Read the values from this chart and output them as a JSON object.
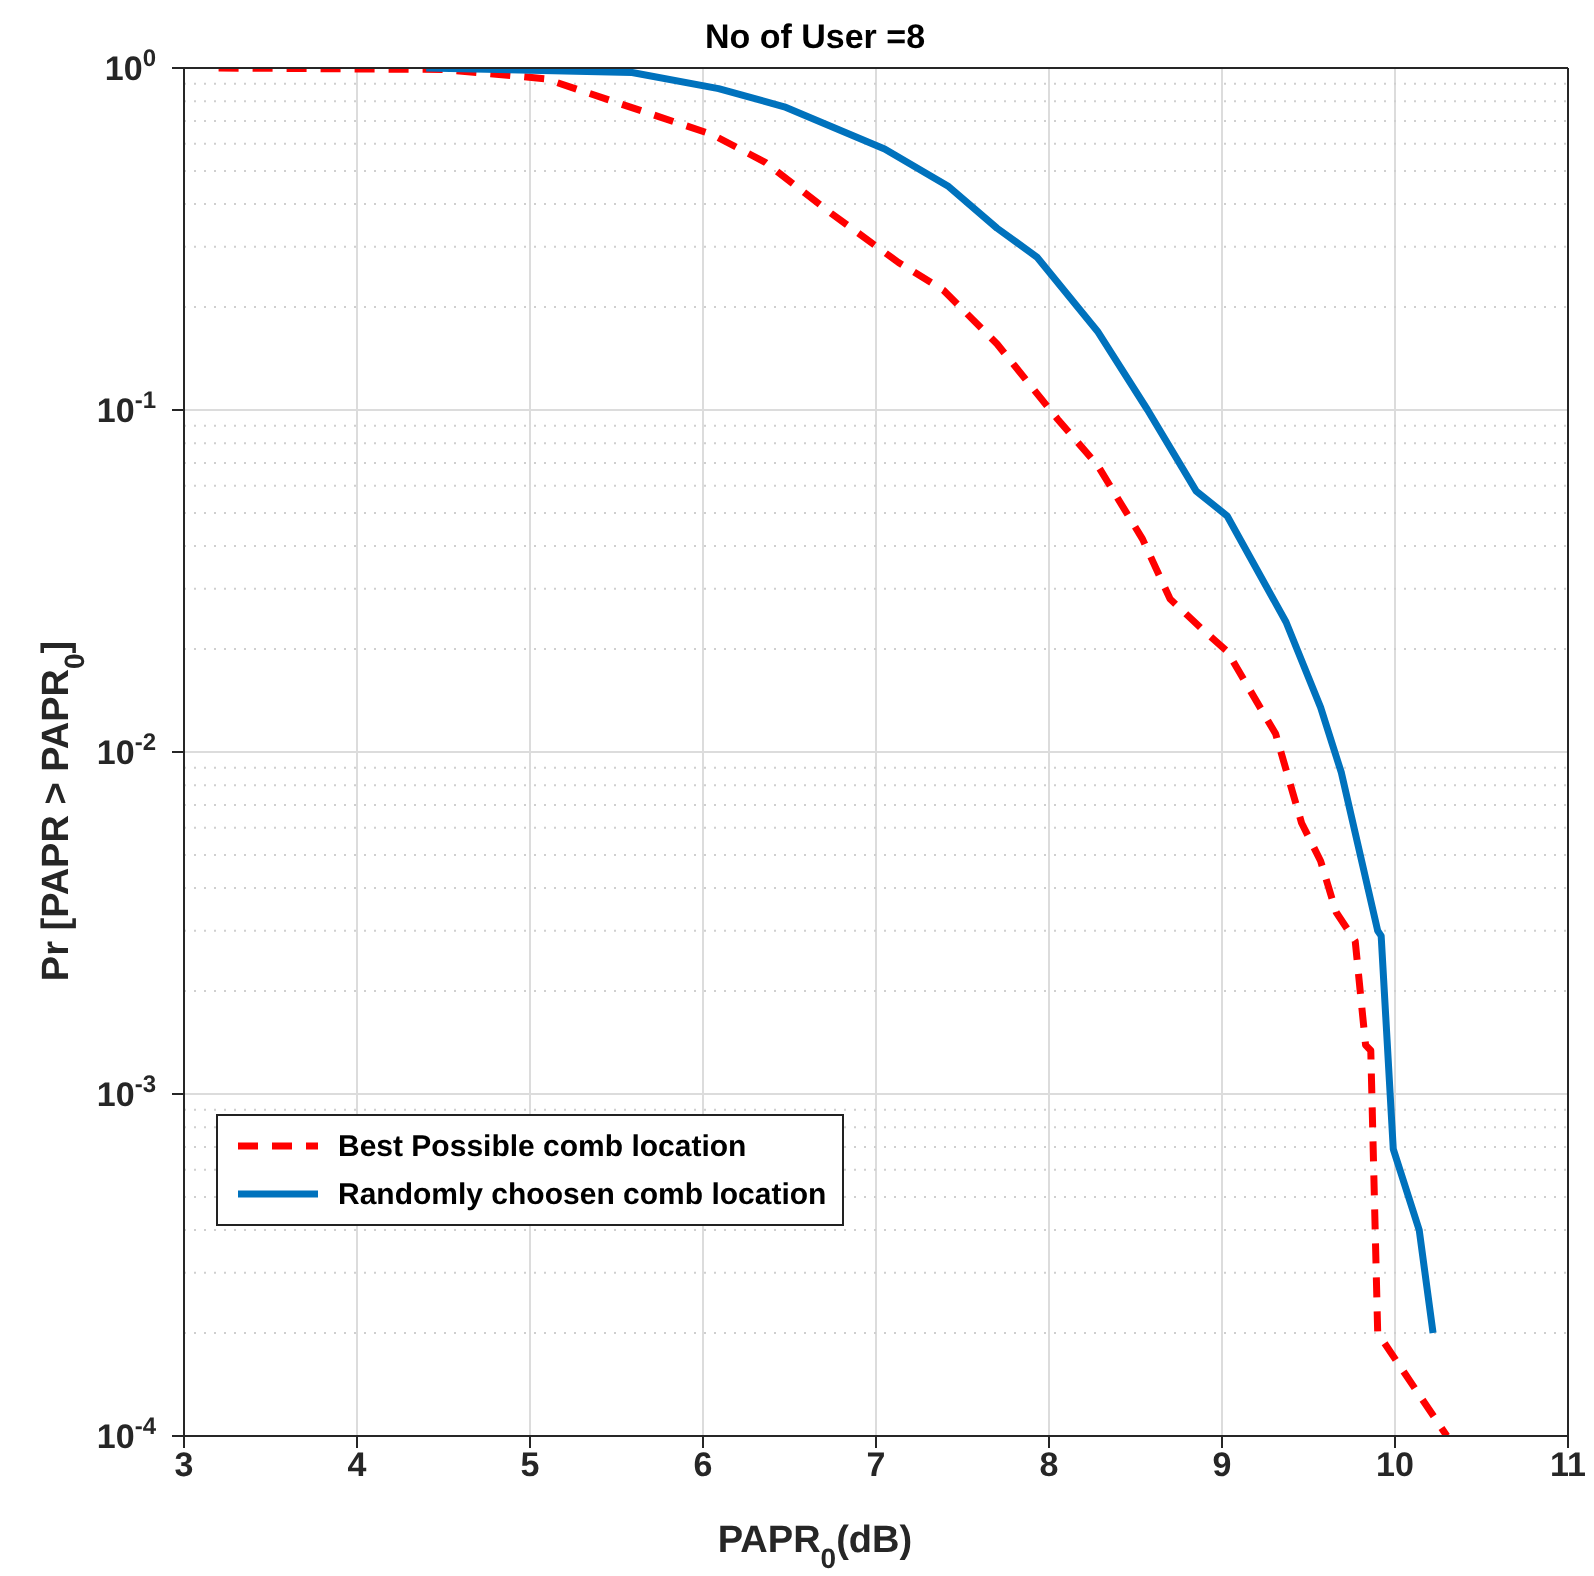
{
  "chart_data": {
    "type": "line",
    "title": "No of User =8",
    "xlabel": "PAPR$_{0}$(dB)",
    "ylabel": "Pr [PAPR > PAPR$_{0}$]",
    "log": "y",
    "grid": true,
    "legend": "bottom left",
    "marker": "none",
    "xlim": [
      3,
      11
    ],
    "xticks": [
      3,
      4,
      5,
      6,
      7,
      8,
      9,
      10,
      11
    ],
    "ylim": [
      0.0001,
      1
    ],
    "yticks": [
      {
        "value": 0.0001,
        "label": "10$^{-4}$"
      },
      {
        "value": 0.001,
        "label": "10$^{-3}$"
      },
      {
        "value": 0.01,
        "label": "10$^{-2}$"
      },
      {
        "value": 0.1,
        "label": "10$^{-1}$"
      },
      {
        "value": 1,
        "label": "10$^{0}$"
      }
    ],
    "series": [
      {
        "name": "Best Possible comb location",
        "color": "#ff0000",
        "line_style": "dashed",
        "x": [
          3.2,
          4.5,
          5.09,
          6.05,
          6.36,
          6.74,
          7.13,
          7.39,
          7.7,
          8.05,
          8.28,
          8.54,
          8.7,
          8.88,
          9.03,
          9.31,
          9.46,
          9.57,
          9.66,
          9.77,
          9.83,
          9.86,
          9.9,
          10.3
        ],
        "values": [
          1,
          0.99,
          0.93,
          0.64,
          0.53,
          0.376,
          0.27,
          0.224,
          0.156,
          0.094,
          0.069,
          0.042,
          0.028,
          0.023,
          0.0197,
          0.0113,
          0.0062,
          0.0048,
          0.0034,
          0.0028,
          0.00139,
          0.00134,
          0.0002,
          0.0001
        ]
      },
      {
        "name": "Randomly choosen comb location",
        "color": "#0072bd",
        "line_style": "solid",
        "x": [
          4.4,
          5.59,
          6.09,
          6.47,
          7.05,
          7.42,
          7.7,
          7.93,
          8.28,
          8.57,
          8.85,
          9.03,
          9.37,
          9.57,
          9.69,
          9.9,
          9.92,
          9.99,
          10.14,
          10.22
        ],
        "values": [
          1,
          0.97,
          0.87,
          0.77,
          0.58,
          0.45,
          0.34,
          0.28,
          0.17,
          0.1,
          0.058,
          0.049,
          0.024,
          0.0135,
          0.0087,
          0.003,
          0.0029,
          0.00069,
          0.0004,
          0.0002
        ]
      }
    ]
  }
}
